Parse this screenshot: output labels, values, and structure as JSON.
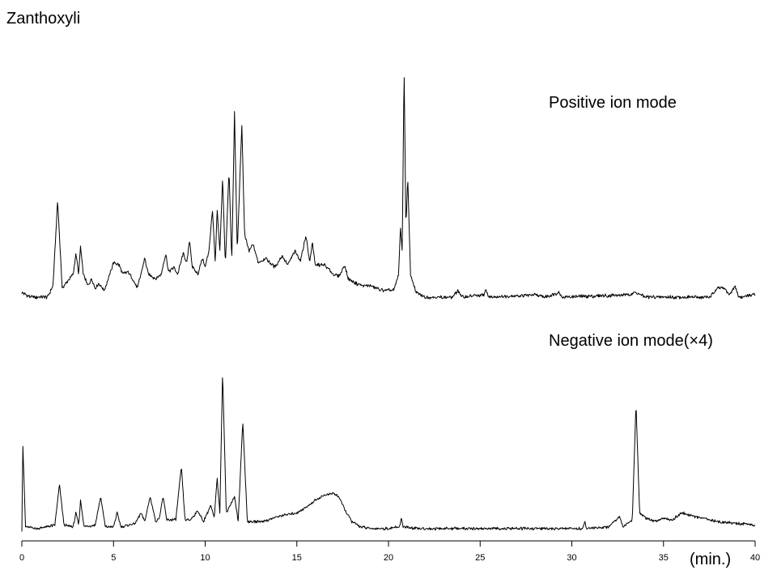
{
  "chart_data": {
    "type": "line",
    "title": "Zanthoxyli",
    "xlabel": "(min.)",
    "xlim": [
      0,
      40
    ],
    "x_ticks": [
      0,
      5,
      10,
      15,
      20,
      25,
      30,
      35,
      40
    ],
    "y_axis": "none",
    "grid": false,
    "legend": "none",
    "series": [
      {
        "name": "Positive ion mode",
        "points": [
          [
            0.0,
            0.02
          ],
          [
            0.5,
            0.0
          ],
          [
            1.4,
            0.0
          ],
          [
            1.7,
            0.05
          ],
          [
            1.95,
            0.42
          ],
          [
            2.2,
            0.04
          ],
          [
            2.8,
            0.1
          ],
          [
            2.95,
            0.19
          ],
          [
            3.1,
            0.1
          ],
          [
            3.2,
            0.22
          ],
          [
            3.35,
            0.1
          ],
          [
            3.6,
            0.05
          ],
          [
            3.8,
            0.08
          ],
          [
            4.0,
            0.04
          ],
          [
            4.2,
            0.06
          ],
          [
            4.5,
            0.03
          ],
          [
            4.8,
            0.1
          ],
          [
            5.0,
            0.15
          ],
          [
            5.3,
            0.14
          ],
          [
            5.5,
            0.1
          ],
          [
            5.8,
            0.11
          ],
          [
            6.1,
            0.07
          ],
          [
            6.3,
            0.04
          ],
          [
            6.5,
            0.1
          ],
          [
            6.7,
            0.17
          ],
          [
            6.9,
            0.1
          ],
          [
            7.3,
            0.08
          ],
          [
            7.6,
            0.1
          ],
          [
            7.85,
            0.19
          ],
          [
            8.0,
            0.11
          ],
          [
            8.3,
            0.13
          ],
          [
            8.5,
            0.1
          ],
          [
            8.8,
            0.19
          ],
          [
            9.0,
            0.15
          ],
          [
            9.15,
            0.25
          ],
          [
            9.3,
            0.13
          ],
          [
            9.6,
            0.1
          ],
          [
            9.85,
            0.17
          ],
          [
            10.0,
            0.13
          ],
          [
            10.2,
            0.2
          ],
          [
            10.4,
            0.38
          ],
          [
            10.55,
            0.14
          ],
          [
            10.65,
            0.38
          ],
          [
            10.8,
            0.2
          ],
          [
            10.95,
            0.52
          ],
          [
            11.1,
            0.14
          ],
          [
            11.3,
            0.55
          ],
          [
            11.45,
            0.15
          ],
          [
            11.6,
            0.8
          ],
          [
            11.75,
            0.2
          ],
          [
            12.0,
            0.75
          ],
          [
            12.15,
            0.27
          ],
          [
            12.4,
            0.2
          ],
          [
            12.6,
            0.23
          ],
          [
            12.9,
            0.15
          ],
          [
            13.3,
            0.17
          ],
          [
            13.8,
            0.13
          ],
          [
            14.2,
            0.18
          ],
          [
            14.5,
            0.14
          ],
          [
            14.9,
            0.2
          ],
          [
            15.2,
            0.16
          ],
          [
            15.5,
            0.27
          ],
          [
            15.7,
            0.15
          ],
          [
            15.85,
            0.24
          ],
          [
            16.0,
            0.14
          ],
          [
            16.5,
            0.14
          ],
          [
            17.0,
            0.1
          ],
          [
            17.3,
            0.09
          ],
          [
            17.6,
            0.14
          ],
          [
            17.8,
            0.08
          ],
          [
            18.2,
            0.06
          ],
          [
            18.6,
            0.05
          ],
          [
            19.0,
            0.05
          ],
          [
            19.3,
            0.04
          ],
          [
            19.6,
            0.03
          ],
          [
            20.0,
            0.03
          ],
          [
            20.3,
            0.03
          ],
          [
            20.55,
            0.1
          ],
          [
            20.65,
            0.3
          ],
          [
            20.75,
            0.2
          ],
          [
            20.85,
            1.0
          ],
          [
            20.95,
            0.3
          ],
          [
            21.05,
            0.52
          ],
          [
            21.2,
            0.1
          ],
          [
            21.5,
            0.02
          ],
          [
            22.0,
            0.0
          ],
          [
            23.5,
            0.0
          ],
          [
            23.8,
            0.03
          ],
          [
            24.0,
            0.0
          ],
          [
            25.2,
            0.01
          ],
          [
            25.3,
            0.03
          ],
          [
            25.5,
            0.0
          ],
          [
            28.0,
            0.01
          ],
          [
            28.5,
            0.0
          ],
          [
            29.3,
            0.02
          ],
          [
            29.5,
            0.0
          ],
          [
            33.0,
            0.01
          ],
          [
            33.5,
            0.02
          ],
          [
            34.0,
            0.0
          ],
          [
            37.5,
            0.0
          ],
          [
            38.0,
            0.04
          ],
          [
            38.3,
            0.04
          ],
          [
            38.6,
            0.01
          ],
          [
            38.9,
            0.05
          ],
          [
            39.1,
            0.0
          ],
          [
            40.0,
            0.01
          ]
        ]
      },
      {
        "name": "Negative ion mode(×4)",
        "points": [
          [
            0.0,
            0.0
          ],
          [
            0.05,
            0.5
          ],
          [
            0.2,
            0.02
          ],
          [
            0.9,
            0.01
          ],
          [
            1.8,
            0.03
          ],
          [
            2.05,
            0.26
          ],
          [
            2.3,
            0.03
          ],
          [
            2.8,
            0.02
          ],
          [
            2.95,
            0.1
          ],
          [
            3.1,
            0.03
          ],
          [
            3.2,
            0.17
          ],
          [
            3.4,
            0.02
          ],
          [
            4.0,
            0.03
          ],
          [
            4.3,
            0.19
          ],
          [
            4.55,
            0.02
          ],
          [
            5.0,
            0.02
          ],
          [
            5.2,
            0.1
          ],
          [
            5.4,
            0.02
          ],
          [
            6.2,
            0.04
          ],
          [
            6.5,
            0.1
          ],
          [
            6.7,
            0.05
          ],
          [
            7.0,
            0.19
          ],
          [
            7.3,
            0.05
          ],
          [
            7.5,
            0.07
          ],
          [
            7.7,
            0.19
          ],
          [
            7.9,
            0.06
          ],
          [
            8.4,
            0.06
          ],
          [
            8.7,
            0.36
          ],
          [
            8.9,
            0.06
          ],
          [
            9.2,
            0.06
          ],
          [
            9.6,
            0.11
          ],
          [
            9.9,
            0.05
          ],
          [
            10.3,
            0.14
          ],
          [
            10.5,
            0.07
          ],
          [
            10.65,
            0.3
          ],
          [
            10.8,
            0.1
          ],
          [
            10.95,
            0.9
          ],
          [
            11.15,
            0.1
          ],
          [
            11.6,
            0.19
          ],
          [
            11.8,
            0.05
          ],
          [
            12.05,
            0.62
          ],
          [
            12.3,
            0.05
          ],
          [
            13.0,
            0.05
          ],
          [
            13.5,
            0.06
          ],
          [
            14.0,
            0.08
          ],
          [
            14.5,
            0.09
          ],
          [
            15.0,
            0.1
          ],
          [
            15.5,
            0.13
          ],
          [
            16.0,
            0.17
          ],
          [
            16.5,
            0.2
          ],
          [
            17.0,
            0.21
          ],
          [
            17.3,
            0.19
          ],
          [
            17.6,
            0.12
          ],
          [
            18.0,
            0.05
          ],
          [
            18.5,
            0.02
          ],
          [
            19.0,
            0.01
          ],
          [
            20.0,
            0.01
          ],
          [
            20.6,
            0.02
          ],
          [
            20.7,
            0.07
          ],
          [
            20.8,
            0.02
          ],
          [
            21.5,
            0.01
          ],
          [
            25.0,
            0.01
          ],
          [
            28.0,
            0.01
          ],
          [
            30.0,
            0.01
          ],
          [
            30.6,
            0.01
          ],
          [
            30.7,
            0.05
          ],
          [
            30.8,
            0.01
          ],
          [
            32.0,
            0.02
          ],
          [
            32.6,
            0.08
          ],
          [
            32.8,
            0.02
          ],
          [
            33.3,
            0.06
          ],
          [
            33.5,
            0.72
          ],
          [
            33.7,
            0.1
          ],
          [
            34.0,
            0.07
          ],
          [
            34.5,
            0.05
          ],
          [
            35.0,
            0.07
          ],
          [
            35.5,
            0.06
          ],
          [
            36.0,
            0.1
          ],
          [
            36.3,
            0.09
          ],
          [
            37.0,
            0.07
          ],
          [
            38.0,
            0.05
          ],
          [
            39.0,
            0.04
          ],
          [
            40.0,
            0.03
          ]
        ]
      }
    ]
  }
}
